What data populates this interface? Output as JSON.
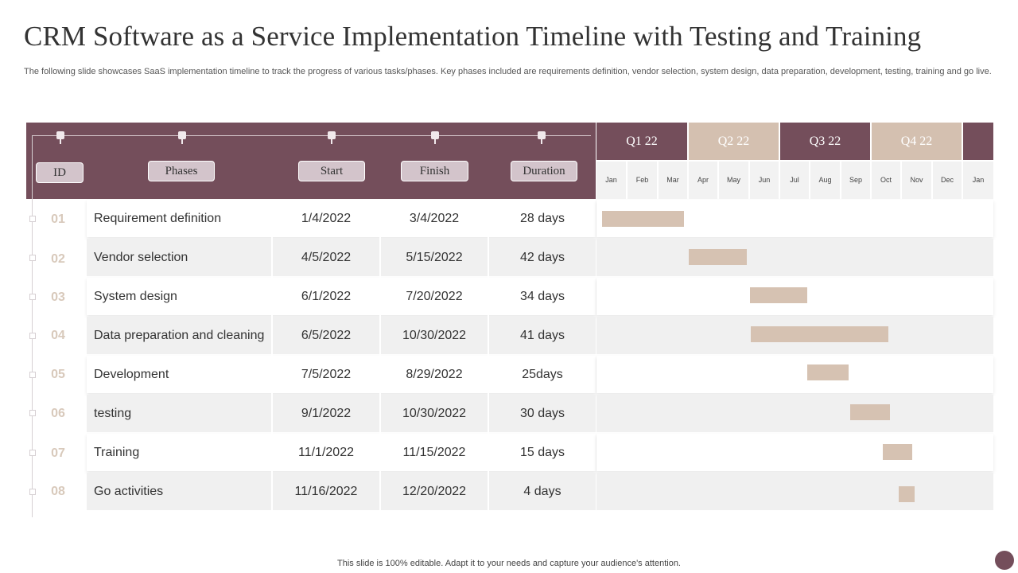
{
  "slide": {
    "title": "CRM Software as a Service Implementation Timeline with Testing and Training",
    "subtitle": "The following slide showcases SaaS implementation timeline to track the progress of various tasks/phases. Key phases included are requirements definition, vendor selection, system design, data preparation, development, testing, training and go live.",
    "footer": "This slide is 100% editable. Adapt it to your needs and capture your audience's attention."
  },
  "table": {
    "headers": {
      "id": "ID",
      "phases": "Phases",
      "start": "Start",
      "finish": "Finish",
      "duration": "Duration"
    },
    "rows": [
      {
        "id": "01",
        "phase": "Requirement definition",
        "start": "1/4/2022",
        "finish": "3/4/2022",
        "duration": "28 days"
      },
      {
        "id": "02",
        "phase": "Vendor selection",
        "start": "4/5/2022",
        "finish": "5/15/2022",
        "duration": "42 days"
      },
      {
        "id": "03",
        "phase": "System design",
        "start": "6/1/2022",
        "finish": "7/20/2022",
        "duration": "34 days"
      },
      {
        "id": "04",
        "phase": "Data preparation and cleaning",
        "start": "6/5/2022",
        "finish": "10/30/2022",
        "duration": "41 days"
      },
      {
        "id": "05",
        "phase": "Development",
        "start": "7/5/2022",
        "finish": "8/29/2022",
        "duration": "25days"
      },
      {
        "id": "06",
        "phase": "testing",
        "start": "9/1/2022",
        "finish": "10/30/2022",
        "duration": "30 days"
      },
      {
        "id": "07",
        "phase": "Training",
        "start": "11/1/2022",
        "finish": "11/15/2022",
        "duration": "15 days"
      },
      {
        "id": "08",
        "phase": "Go activities",
        "start": "11/16/2022",
        "finish": "12/20/2022",
        "duration": "4 days"
      }
    ]
  },
  "timeline": {
    "quarters": [
      "Q1 22",
      "Q2 22",
      "Q3 22",
      "Q4 22",
      ""
    ],
    "months": [
      "Jan",
      "Feb",
      "Mar",
      "Apr",
      "May",
      "Jun",
      "Jul",
      "Aug",
      "Sep",
      "Oct",
      "Nov",
      "Dec",
      "Jan"
    ]
  },
  "colors": {
    "primary": "#744e5b",
    "secondary": "#d4c0b0",
    "bar": "#d6c2b2",
    "pill": "#d3c4cb"
  },
  "icons": {
    "corner": "circle-icon"
  }
}
